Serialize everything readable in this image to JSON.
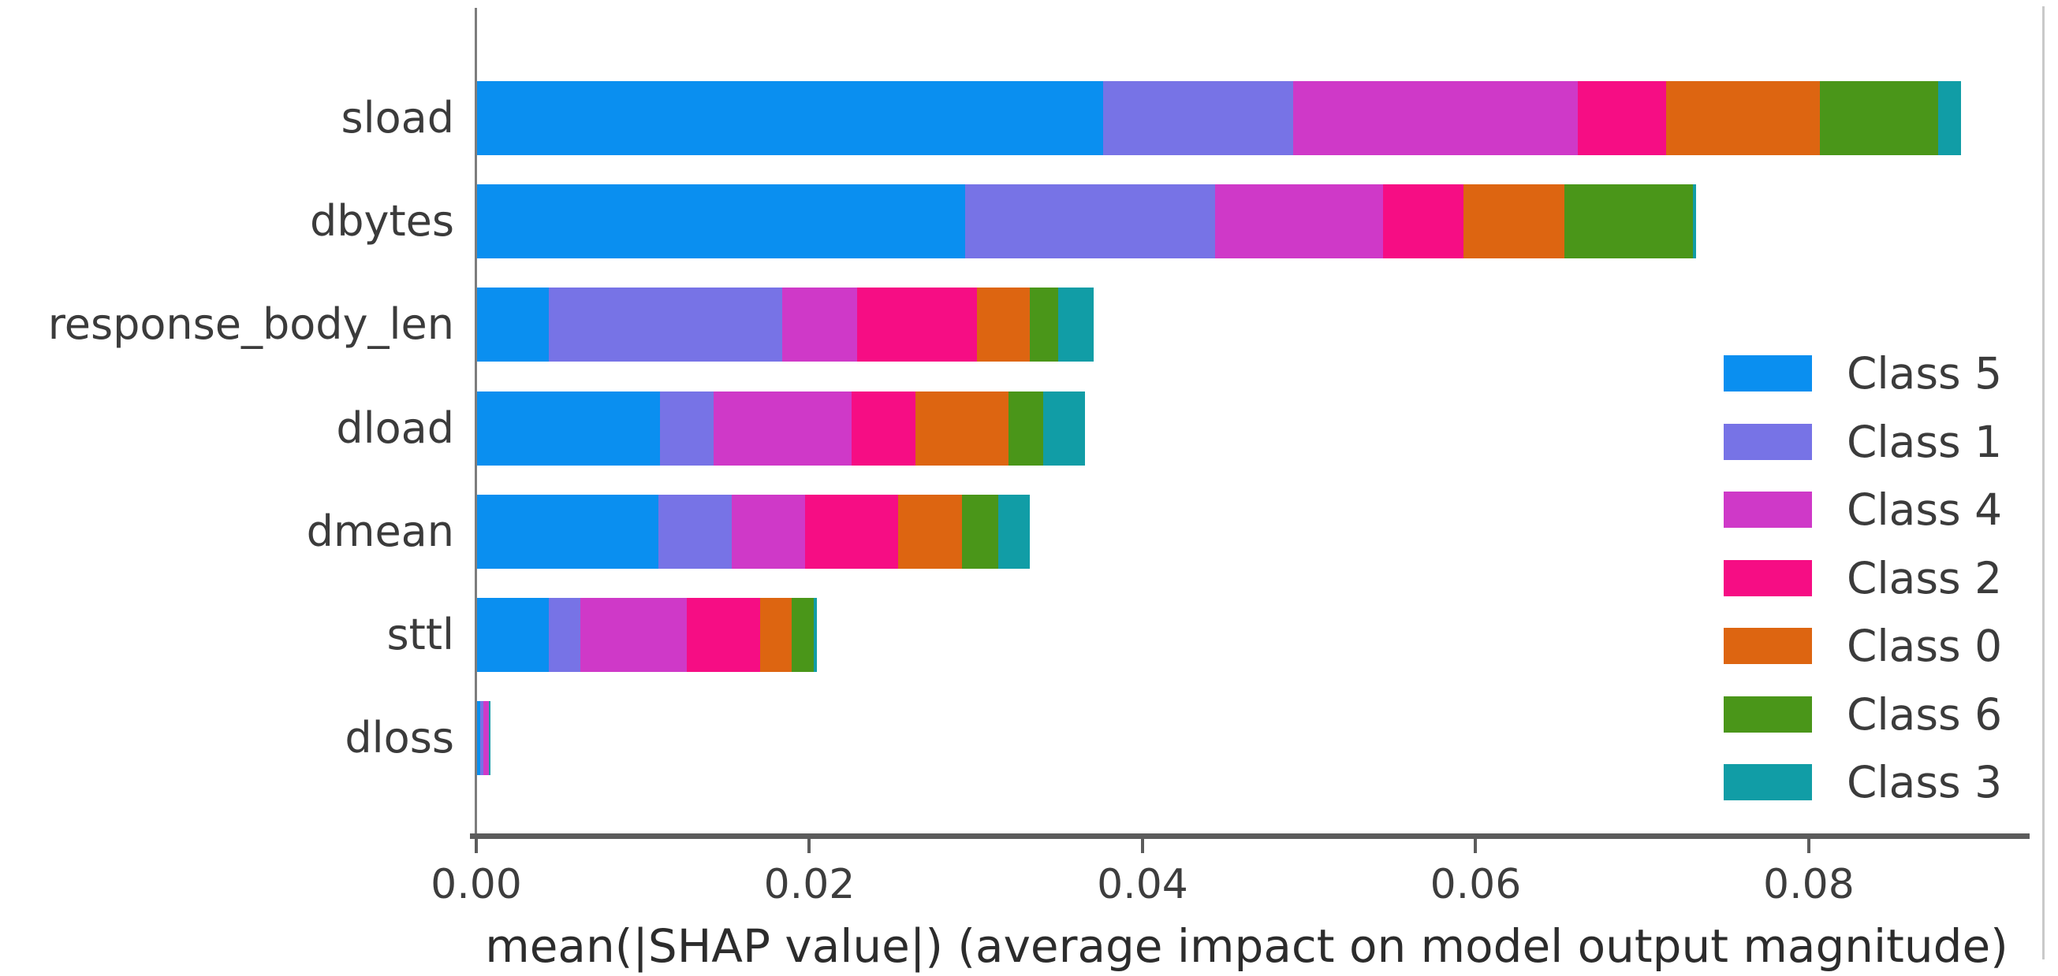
{
  "figure": {
    "background": "#ffffff",
    "spine_color": "#7d7d7d",
    "axis_line_color": "#5c5c5c",
    "text_color": "#3b3b3b",
    "right_border_color": "#c9c9c9"
  },
  "chart_data": {
    "type": "bar",
    "orientation": "horizontal",
    "stacked": true,
    "title": "",
    "xlabel": "mean(|SHAP value|) (average impact on model output magnitude)",
    "ylabel": "",
    "xlim": [
      0,
      0.0925
    ],
    "xticks": [
      0,
      0.02,
      0.04,
      0.06,
      0.08
    ],
    "xtick_labels": [
      "0.00",
      "0.02",
      "0.04",
      "0.06",
      "0.08"
    ],
    "grid": false,
    "legend_position": "right",
    "categories": [
      "sload",
      "dbytes",
      "response_body_len",
      "dload",
      "dmean",
      "sttl",
      "dloss"
    ],
    "series": [
      {
        "name": "Class 5",
        "color": "#0a8ff0",
        "values": [
          0.0376,
          0.0293,
          0.0043,
          0.011,
          0.0109,
          0.0043,
          0.0002
        ]
      },
      {
        "name": "Class 1",
        "color": "#7773e6",
        "values": [
          0.0114,
          0.015,
          0.014,
          0.0032,
          0.0044,
          0.0019,
          0.0002
        ]
      },
      {
        "name": "Class 4",
        "color": "#cf39c8",
        "values": [
          0.0171,
          0.0101,
          0.0045,
          0.0083,
          0.0044,
          0.0064,
          0.0003
        ]
      },
      {
        "name": "Class 2",
        "color": "#f60d84",
        "values": [
          0.0053,
          0.0048,
          0.0072,
          0.0038,
          0.0056,
          0.0044,
          0.0
        ]
      },
      {
        "name": "Class 0",
        "color": "#dd6511",
        "values": [
          0.0092,
          0.0061,
          0.0032,
          0.0056,
          0.0038,
          0.0019,
          0.0
        ]
      },
      {
        "name": "Class 6",
        "color": "#4a9619",
        "values": [
          0.0071,
          0.0077,
          0.0017,
          0.0021,
          0.0022,
          0.0013,
          0.0
        ]
      },
      {
        "name": "Class 3",
        "color": "#119da6",
        "values": [
          0.0014,
          0.0002,
          0.0021,
          0.0025,
          0.0019,
          0.0002,
          0.0001
        ]
      }
    ],
    "bar_totals": [
      0.0891,
      0.0732,
      0.037,
      0.0365,
      0.0332,
      0.0204,
      0.0008
    ]
  }
}
